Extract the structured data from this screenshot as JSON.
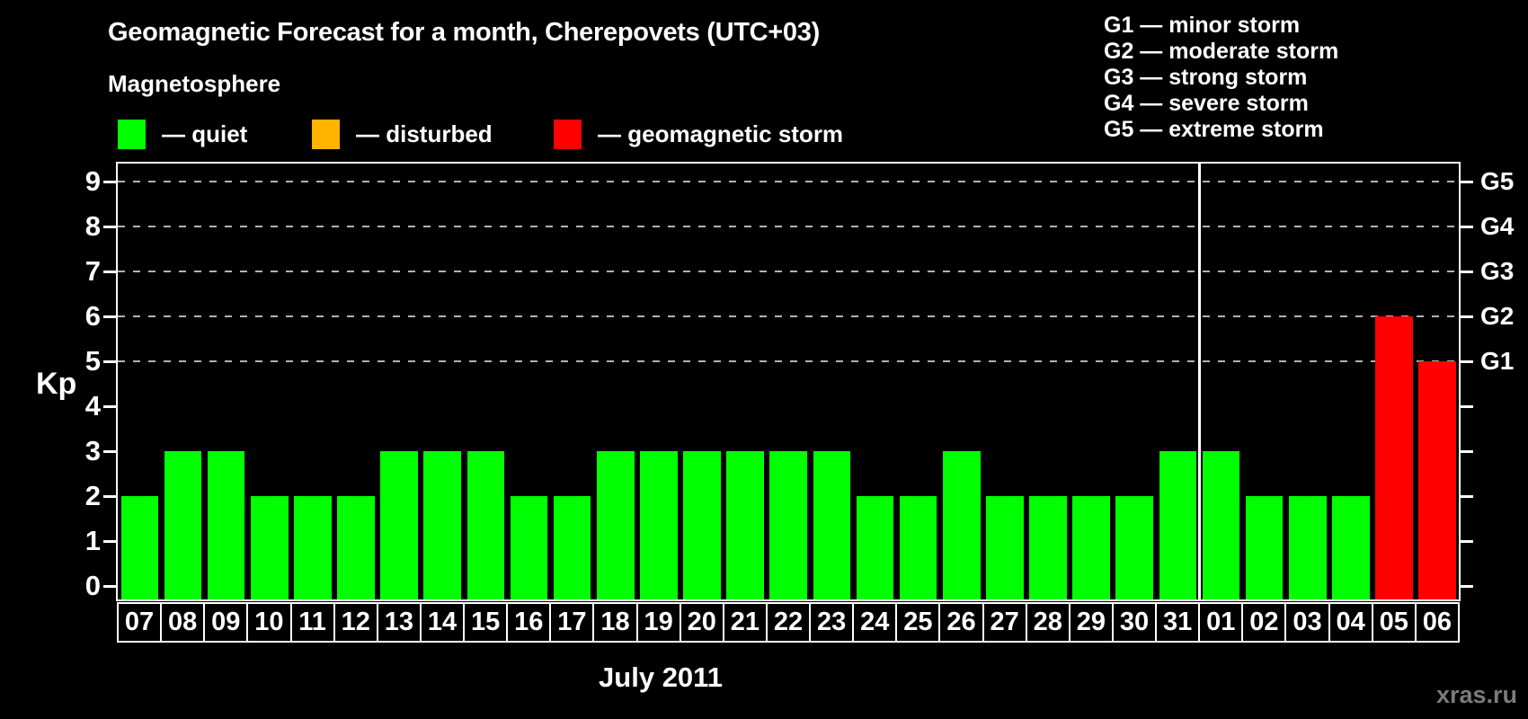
{
  "header": {
    "title": "Geomagnetic Forecast for a month, Cherepovets (UTC+03)"
  },
  "magnetosphere": {
    "label": "Magnetosphere",
    "legend_items": [
      {
        "status": "quiet",
        "label": "— quiet",
        "color": "#00ff00",
        "x": 131
      },
      {
        "status": "disturbed",
        "label": "— disturbed",
        "color": "#ffb400",
        "x": 347
      },
      {
        "status": "storm",
        "label": "— geomagnetic storm",
        "color": "#ff0000",
        "x": 616
      }
    ]
  },
  "g_legend": {
    "items": [
      "G1 — minor storm",
      "G2 — moderate storm",
      "G3 — strong storm",
      "G4 — severe storm",
      "G5 — extreme storm"
    ]
  },
  "watermark": {
    "text": "xras.ru"
  },
  "colors": {
    "quiet": "#00ff00",
    "disturbed": "#ffb400",
    "storm": "#ff0000",
    "axis": "#ffffff",
    "grid": "#b2b2b2",
    "background": "#000000"
  },
  "chart_data": {
    "type": "bar",
    "title": "Geomagnetic Forecast for a month, Cherepovets (UTC+03)",
    "xlabel": "July 2011",
    "ylabel": "Kp",
    "ylim": [
      0,
      9
    ],
    "grid": "dashed horizontal at Kp 5–9 only",
    "legend_position": "top",
    "y_ticks": [
      "0",
      "1",
      "2",
      "3",
      "4",
      "5",
      "6",
      "7",
      "8",
      "9"
    ],
    "right_axis_labels": [
      {
        "label": "G1",
        "kp": 5
      },
      {
        "label": "G2",
        "kp": 6
      },
      {
        "label": "G3",
        "kp": 7
      },
      {
        "label": "G4",
        "kp": 8
      },
      {
        "label": "G5",
        "kp": 9
      }
    ],
    "gridline_levels": [
      5,
      6,
      7,
      8,
      9
    ],
    "month_separator_after": "31",
    "categories": [
      "07",
      "08",
      "09",
      "10",
      "11",
      "12",
      "13",
      "14",
      "15",
      "16",
      "17",
      "18",
      "19",
      "20",
      "21",
      "22",
      "23",
      "24",
      "25",
      "26",
      "27",
      "28",
      "29",
      "30",
      "31",
      "01",
      "02",
      "03",
      "04",
      "05",
      "06"
    ],
    "values": [
      2,
      3,
      3,
      2,
      2,
      2,
      3,
      3,
      3,
      2,
      2,
      3,
      3,
      3,
      3,
      3,
      3,
      2,
      2,
      3,
      2,
      2,
      2,
      2,
      3,
      3,
      2,
      2,
      2,
      6,
      5
    ],
    "statuses": [
      "quiet",
      "quiet",
      "quiet",
      "quiet",
      "quiet",
      "quiet",
      "quiet",
      "quiet",
      "quiet",
      "quiet",
      "quiet",
      "quiet",
      "quiet",
      "quiet",
      "quiet",
      "quiet",
      "quiet",
      "quiet",
      "quiet",
      "quiet",
      "quiet",
      "quiet",
      "quiet",
      "quiet",
      "quiet",
      "quiet",
      "quiet",
      "quiet",
      "quiet",
      "storm",
      "storm"
    ]
  }
}
